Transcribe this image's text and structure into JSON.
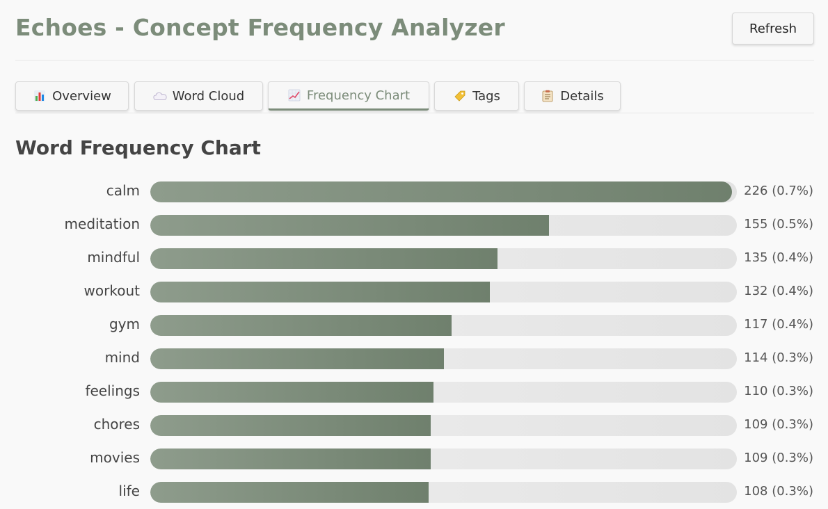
{
  "header": {
    "title": "Echoes - Concept Frequency Analyzer",
    "refresh_label": "Refresh"
  },
  "tabs": [
    {
      "label": "Overview",
      "icon": "bar-chart-icon",
      "active": false
    },
    {
      "label": "Word Cloud",
      "icon": "cloud-icon",
      "active": false
    },
    {
      "label": "Frequency Chart",
      "icon": "line-chart-icon",
      "active": true
    },
    {
      "label": "Tags",
      "icon": "tag-icon",
      "active": false
    },
    {
      "label": "Details",
      "icon": "clipboard-icon",
      "active": false
    }
  ],
  "section": {
    "title": "Word Frequency Chart"
  },
  "colors": {
    "accent": "#7c8c7a",
    "bar_fill_start": "#8e9c8c",
    "bar_fill_end": "#6f806d",
    "track": "#e8e8e8"
  },
  "chart_data": {
    "type": "bar",
    "orientation": "horizontal",
    "categories": [
      "calm",
      "meditation",
      "mindful",
      "workout",
      "gym",
      "mind",
      "feelings",
      "chores",
      "movies",
      "life"
    ],
    "values": [
      226,
      155,
      135,
      132,
      117,
      114,
      110,
      109,
      109,
      108
    ],
    "value_labels": [
      "226 (0.7%)",
      "155 (0.5%)",
      "135 (0.4%)",
      "132 (0.4%)",
      "117 (0.4%)",
      "114 (0.3%)",
      "110 (0.3%)",
      "109 (0.3%)",
      "109 (0.3%)",
      "108 (0.3%)"
    ],
    "title": "Word Frequency Chart",
    "xlabel": "",
    "ylabel": ""
  }
}
